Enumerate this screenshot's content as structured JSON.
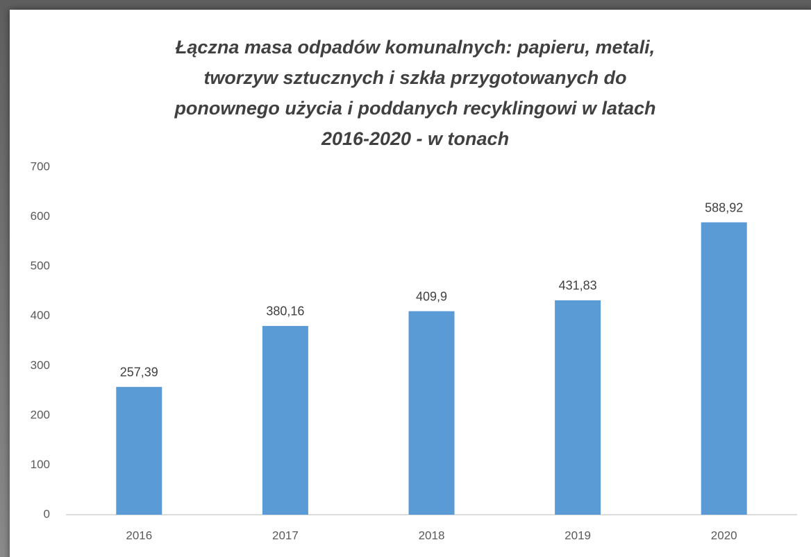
{
  "chart_data": {
    "type": "bar",
    "title": [
      "Łączna masa odpadów komunalnych: papieru, metali,",
      "tworzyw sztucznych i szkła przygotowanych do",
      "ponownego użycia i poddanych recyklingowi w latach",
      "2016-2020 - w tonach"
    ],
    "categories": [
      "2016",
      "2017",
      "2018",
      "2019",
      "2020"
    ],
    "values": [
      257.39,
      380.16,
      409.9,
      431.83,
      588.92
    ],
    "value_labels": [
      "257,39",
      "380,16",
      "409,9",
      "431,83",
      "588,92"
    ],
    "color": "#5b9bd5",
    "ylim": [
      0,
      700
    ],
    "yticks": [
      0,
      100,
      200,
      300,
      400,
      500,
      600,
      700
    ],
    "grid": true
  }
}
